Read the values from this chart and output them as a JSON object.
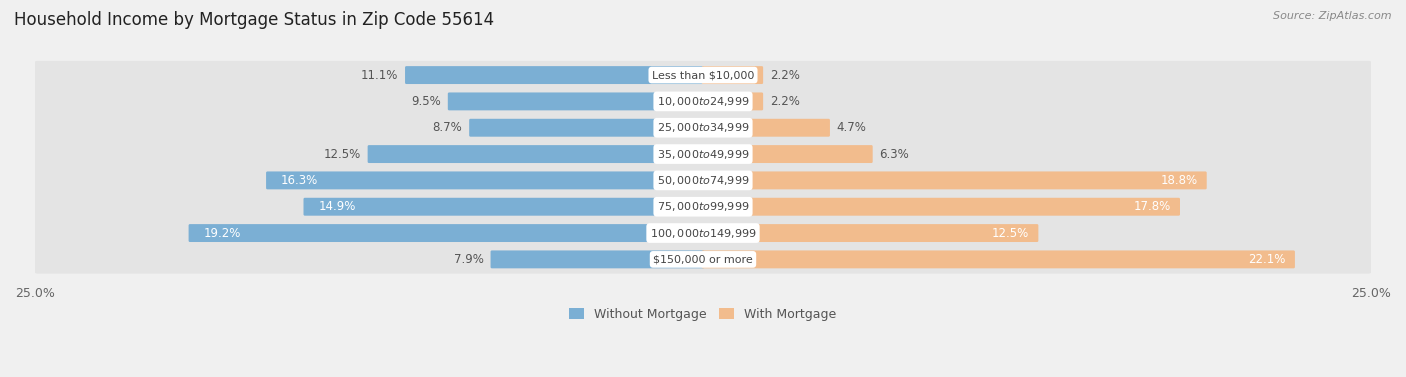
{
  "title": "Household Income by Mortgage Status in Zip Code 55614",
  "source": "Source: ZipAtlas.com",
  "categories": [
    "Less than $10,000",
    "$10,000 to $24,999",
    "$25,000 to $34,999",
    "$35,000 to $49,999",
    "$50,000 to $74,999",
    "$75,000 to $99,999",
    "$100,000 to $149,999",
    "$150,000 or more"
  ],
  "without_mortgage": [
    11.1,
    9.5,
    8.7,
    12.5,
    16.3,
    14.9,
    19.2,
    7.9
  ],
  "with_mortgage": [
    2.2,
    2.2,
    4.7,
    6.3,
    18.8,
    17.8,
    12.5,
    22.1
  ],
  "without_mortgage_color": "#7bafd4",
  "with_mortgage_color": "#f2bc8d",
  "bar_height": 0.58,
  "xlim": 25.0,
  "background_color": "#f0f0f0",
  "row_bg_color": "#e4e4e4",
  "title_fontsize": 12,
  "label_fontsize": 8.5,
  "cat_fontsize": 8.0,
  "legend_fontsize": 9,
  "axis_label_fontsize": 9
}
